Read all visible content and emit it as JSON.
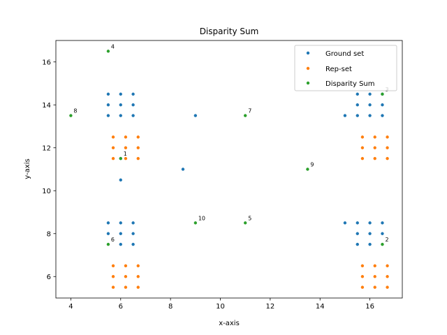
{
  "chart_data": {
    "type": "scatter",
    "title": "Disparity Sum",
    "xlabel": "x-axis",
    "ylabel": "y-axis",
    "xlim": [
      3.4,
      17.3
    ],
    "ylim": [
      5.0,
      17.0
    ],
    "xticks": [
      4,
      6,
      8,
      10,
      12,
      14,
      16
    ],
    "yticks": [
      6,
      8,
      10,
      12,
      14,
      16
    ],
    "grid": false,
    "legend_position": "top-right",
    "series": [
      {
        "name": "Ground set",
        "color": "#1f77b4",
        "points": [
          [
            5.5,
            14.5
          ],
          [
            6.0,
            14.5
          ],
          [
            6.5,
            14.5
          ],
          [
            5.5,
            14.0
          ],
          [
            6.0,
            14.0
          ],
          [
            6.5,
            14.0
          ],
          [
            5.5,
            13.5
          ],
          [
            6.0,
            13.5
          ],
          [
            6.5,
            13.5
          ],
          [
            15.5,
            14.5
          ],
          [
            16.0,
            14.5
          ],
          [
            16.5,
            14.5
          ],
          [
            15.5,
            14.0
          ],
          [
            16.0,
            14.0
          ],
          [
            16.5,
            14.0
          ],
          [
            15.0,
            13.5
          ],
          [
            15.5,
            13.5
          ],
          [
            16.0,
            13.5
          ],
          [
            16.5,
            13.5
          ],
          [
            5.5,
            8.5
          ],
          [
            6.0,
            8.5
          ],
          [
            6.5,
            8.5
          ],
          [
            5.5,
            8.0
          ],
          [
            6.0,
            8.0
          ],
          [
            6.5,
            8.0
          ],
          [
            6.0,
            7.5
          ],
          [
            6.5,
            7.5
          ],
          [
            15.0,
            8.5
          ],
          [
            15.5,
            8.5
          ],
          [
            16.0,
            8.5
          ],
          [
            16.5,
            8.5
          ],
          [
            15.5,
            8.0
          ],
          [
            16.0,
            8.0
          ],
          [
            16.5,
            8.0
          ],
          [
            15.5,
            7.5
          ],
          [
            16.0,
            7.5
          ],
          [
            9.0,
            13.5
          ],
          [
            8.5,
            11.0
          ],
          [
            6.0,
            10.5
          ],
          [
            6.0,
            11.5
          ]
        ]
      },
      {
        "name": "Rep-set",
        "color": "#ff7f0e",
        "points": [
          [
            5.7,
            12.5
          ],
          [
            6.2,
            12.5
          ],
          [
            6.7,
            12.5
          ],
          [
            5.7,
            12.0
          ],
          [
            6.2,
            12.0
          ],
          [
            6.7,
            12.0
          ],
          [
            5.7,
            11.5
          ],
          [
            6.2,
            11.5
          ],
          [
            6.7,
            11.5
          ],
          [
            15.7,
            12.5
          ],
          [
            16.2,
            12.5
          ],
          [
            16.7,
            12.5
          ],
          [
            15.7,
            12.0
          ],
          [
            16.2,
            12.0
          ],
          [
            16.7,
            12.0
          ],
          [
            15.7,
            11.5
          ],
          [
            16.2,
            11.5
          ],
          [
            16.7,
            11.5
          ],
          [
            5.7,
            6.5
          ],
          [
            6.2,
            6.5
          ],
          [
            6.7,
            6.5
          ],
          [
            5.7,
            6.0
          ],
          [
            6.2,
            6.0
          ],
          [
            6.7,
            6.0
          ],
          [
            5.7,
            5.5
          ],
          [
            6.2,
            5.5
          ],
          [
            6.7,
            5.5
          ],
          [
            15.7,
            6.5
          ],
          [
            16.2,
            6.5
          ],
          [
            16.7,
            6.5
          ],
          [
            15.7,
            6.0
          ],
          [
            16.2,
            6.0
          ],
          [
            16.7,
            6.0
          ],
          [
            15.7,
            5.5
          ],
          [
            16.2,
            5.5
          ],
          [
            16.7,
            5.5
          ]
        ]
      },
      {
        "name": "Disparity Sum",
        "color": "#2ca02c",
        "points": [
          [
            6.0,
            11.5
          ],
          [
            16.5,
            7.5
          ],
          [
            16.5,
            14.5
          ],
          [
            5.5,
            16.5
          ],
          [
            11.0,
            8.5
          ],
          [
            5.5,
            7.5
          ],
          [
            11.0,
            13.5
          ],
          [
            4.0,
            13.5
          ],
          [
            13.5,
            11.0
          ],
          [
            9.0,
            8.5
          ]
        ],
        "labels": [
          "1",
          "2",
          "3",
          "4",
          "5",
          "6",
          "7",
          "8",
          "9",
          "10"
        ]
      }
    ]
  }
}
